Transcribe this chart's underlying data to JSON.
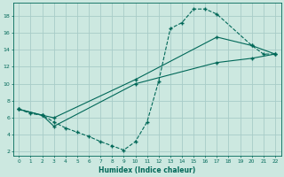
{
  "xlabel": "Humidex (Indice chaleur)",
  "bg_color": "#cce8e0",
  "grid_color": "#a8ccc8",
  "line_color": "#006858",
  "xlim": [
    -0.5,
    22.5
  ],
  "ylim": [
    1.5,
    19.5
  ],
  "xticks": [
    0,
    1,
    2,
    3,
    4,
    5,
    6,
    7,
    8,
    9,
    10,
    11,
    12,
    13,
    14,
    15,
    16,
    17,
    18,
    19,
    20,
    21,
    22
  ],
  "yticks": [
    2,
    4,
    6,
    8,
    10,
    12,
    14,
    16,
    18
  ],
  "line1_dashed": {
    "x": [
      0,
      1,
      2,
      3,
      4,
      5,
      6,
      7,
      8,
      9,
      10,
      11,
      12,
      13,
      14,
      15,
      16,
      17,
      20,
      21,
      22
    ],
    "y": [
      7,
      6.5,
      6.3,
      5.5,
      4.8,
      4.3,
      3.8,
      3.2,
      2.7,
      2.2,
      3.2,
      5.5,
      10.3,
      16.5,
      17.2,
      18.8,
      18.8,
      18.2,
      14.5,
      13.5,
      13.5
    ]
  },
  "line2_solid": {
    "x": [
      0,
      2,
      3,
      10,
      17,
      20,
      22
    ],
    "y": [
      7,
      6.3,
      6.0,
      10.5,
      15.5,
      14.5,
      13.5
    ]
  },
  "line3_solid": {
    "x": [
      0,
      2,
      3,
      10,
      17,
      20,
      22
    ],
    "y": [
      7,
      6.3,
      5.0,
      10.0,
      12.5,
      13.0,
      13.5
    ]
  }
}
